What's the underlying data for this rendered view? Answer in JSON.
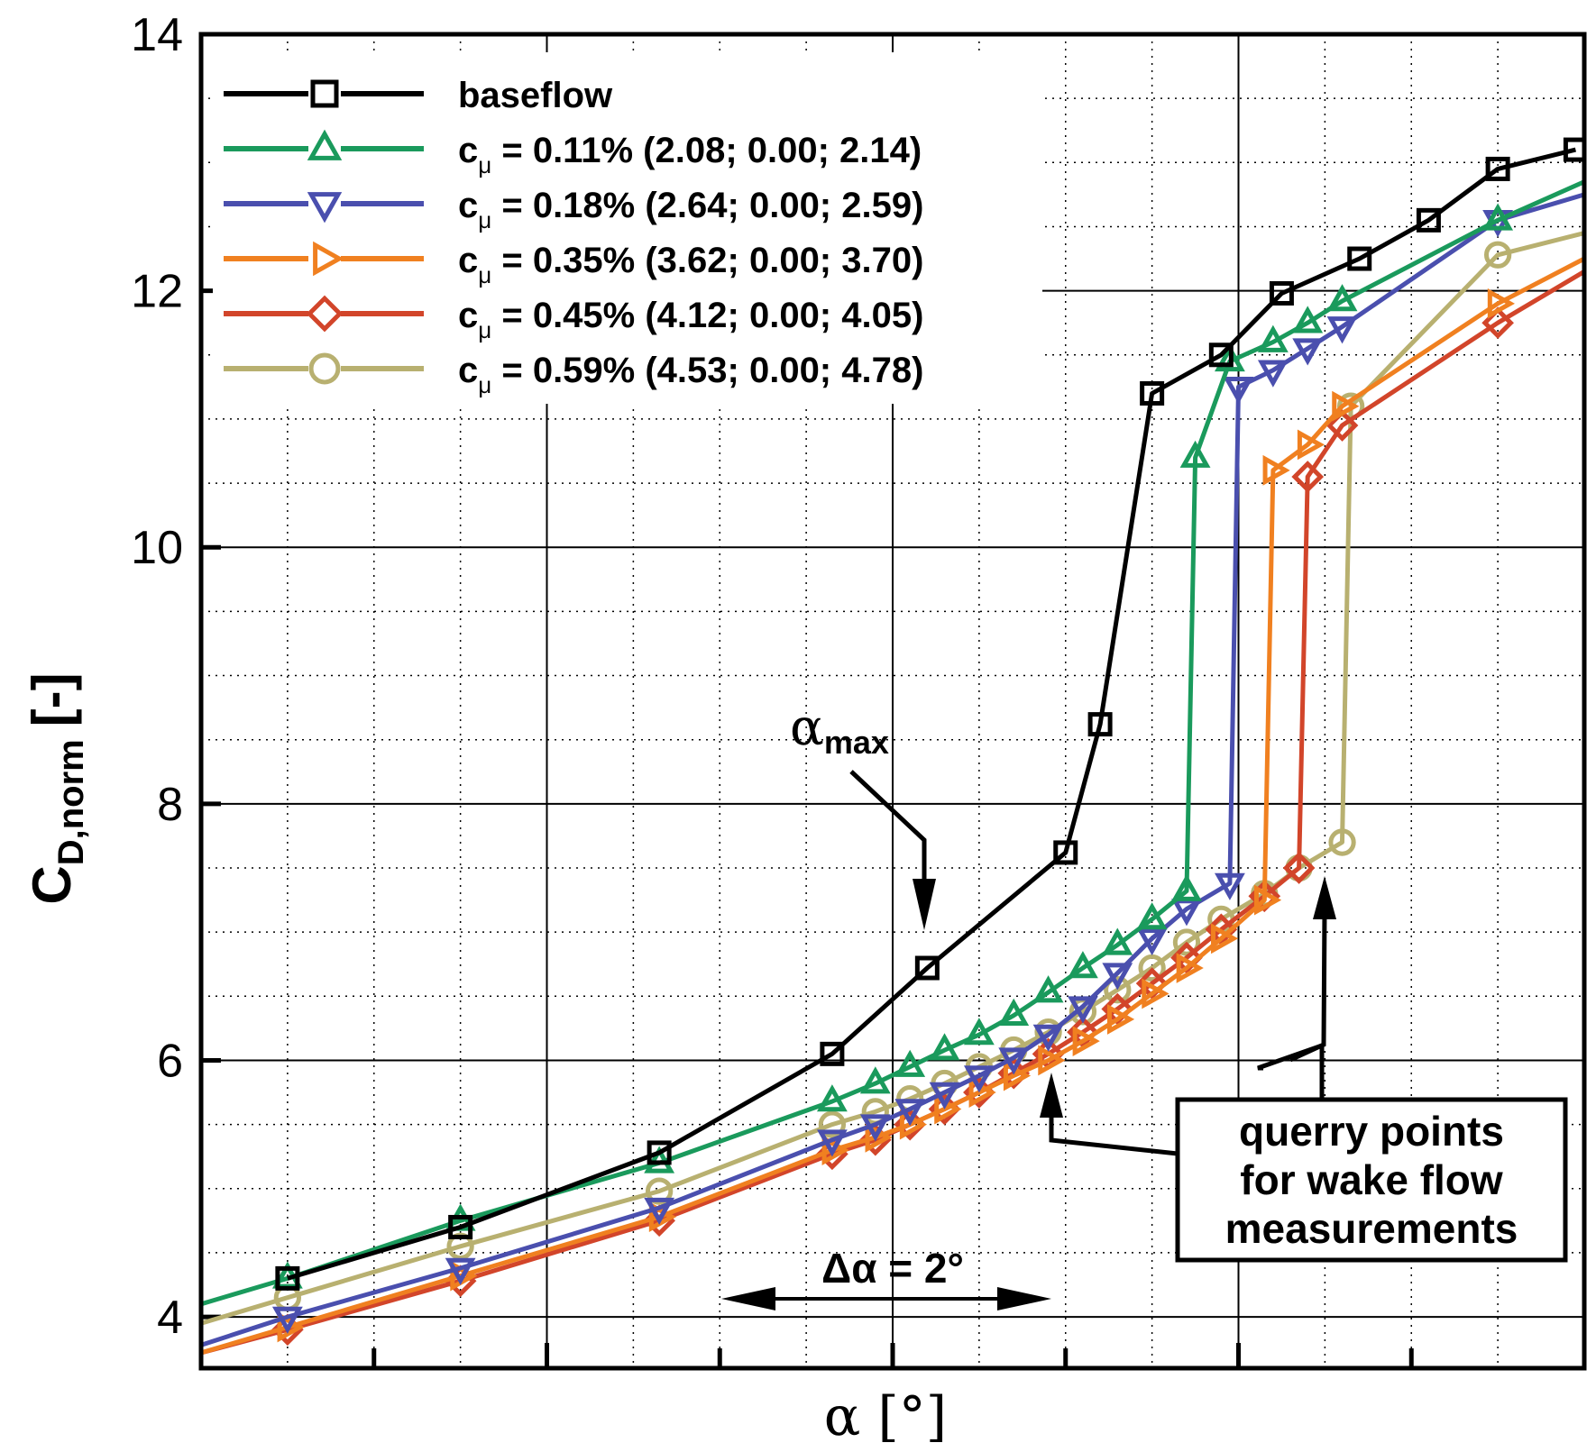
{
  "chart_data": {
    "type": "line",
    "title": "",
    "xlabel": "α [°]",
    "ylabel_main": "C",
    "ylabel_sub": "D,norm",
    "ylabel_unit": "[-]",
    "xlim": [
      -2,
      6
    ],
    "ylim": [
      3.6,
      14
    ],
    "yticks": [
      4,
      6,
      8,
      10,
      12,
      14
    ],
    "xmajor_ticks": [
      0,
      2,
      4
    ],
    "grid": true,
    "legend_position": "top-left",
    "series": [
      {
        "name": "baseflow",
        "label": "baseflow",
        "color": "#000000",
        "marker": "square",
        "x": [
          -1.5,
          -0.5,
          0.65,
          1.65,
          2.2,
          3.0,
          3.2,
          3.5,
          3.9,
          4.25,
          4.7,
          5.1,
          5.5,
          5.95
        ],
        "y": [
          4.3,
          4.7,
          5.28,
          6.05,
          6.72,
          7.62,
          8.62,
          11.2,
          11.5,
          11.98,
          12.25,
          12.55,
          12.95,
          13.1
        ]
      },
      {
        "name": "c_mu = 0.11%",
        "label_main": "c",
        "label_sub": "μ",
        "label_rest": " = 0.11% (2.08; 0.00; 2.14)",
        "color": "#1a9a5c",
        "marker": "triangle-up",
        "x": [
          -2,
          -1.5,
          -0.5,
          0.65,
          1.65,
          1.9,
          2.1,
          2.3,
          2.5,
          2.7,
          2.9,
          3.1,
          3.3,
          3.5,
          3.7,
          3.75,
          3.95,
          4.2,
          4.4,
          4.6,
          5.5,
          6.0
        ],
        "y": [
          4.1,
          4.3,
          4.75,
          5.2,
          5.68,
          5.82,
          5.95,
          6.08,
          6.2,
          6.35,
          6.53,
          6.72,
          6.9,
          7.1,
          7.32,
          10.7,
          11.45,
          11.6,
          11.75,
          11.92,
          12.55,
          12.85
        ]
      },
      {
        "name": "c_mu = 0.18%",
        "label_main": "c",
        "label_sub": "μ",
        "label_rest": " = 0.18% (2.64; 0.00; 2.59)",
        "color": "#4a4fae",
        "marker": "triangle-down",
        "x": [
          -2,
          -1.5,
          -0.5,
          0.65,
          1.65,
          1.9,
          2.1,
          2.3,
          2.5,
          2.7,
          2.9,
          3.1,
          3.3,
          3.5,
          3.7,
          3.95,
          4.0,
          4.2,
          4.4,
          4.6,
          5.5,
          6.0
        ],
        "y": [
          3.78,
          4.0,
          4.38,
          4.85,
          5.38,
          5.5,
          5.62,
          5.75,
          5.88,
          6.02,
          6.2,
          6.42,
          6.68,
          6.95,
          7.18,
          7.38,
          11.25,
          11.38,
          11.55,
          11.72,
          12.55,
          12.75
        ]
      },
      {
        "name": "c_mu = 0.35%",
        "label_main": "c",
        "label_sub": "μ",
        "label_rest": " = 0.35% (3.62; 0.00; 3.70)",
        "color": "#f08020",
        "marker": "triangle-right",
        "x": [
          -2,
          -1.5,
          -0.5,
          0.65,
          1.65,
          1.9,
          2.1,
          2.3,
          2.5,
          2.7,
          2.9,
          3.1,
          3.3,
          3.5,
          3.7,
          3.9,
          4.15,
          4.2,
          4.4,
          4.6,
          5.5,
          6.0
        ],
        "y": [
          3.72,
          3.92,
          4.32,
          4.78,
          5.3,
          5.4,
          5.5,
          5.62,
          5.75,
          5.88,
          6.0,
          6.15,
          6.32,
          6.52,
          6.72,
          6.95,
          7.25,
          10.6,
          10.8,
          11.1,
          11.9,
          12.25
        ]
      },
      {
        "name": "c_mu = 0.45%",
        "label_main": "c",
        "label_sub": "μ",
        "label_rest": " = 0.45% (4.12; 0.00; 4.05)",
        "color": "#d2452a",
        "marker": "diamond",
        "x": [
          -2,
          -1.5,
          -0.5,
          0.65,
          1.65,
          1.9,
          2.1,
          2.3,
          2.5,
          2.7,
          2.9,
          3.1,
          3.3,
          3.5,
          3.7,
          3.9,
          4.15,
          4.35,
          4.4,
          4.6,
          5.5,
          6.0
        ],
        "y": [
          3.72,
          3.9,
          4.28,
          4.75,
          5.27,
          5.38,
          5.5,
          5.62,
          5.75,
          5.9,
          6.05,
          6.22,
          6.4,
          6.6,
          6.8,
          7.02,
          7.28,
          7.5,
          10.55,
          10.95,
          11.75,
          12.15
        ]
      },
      {
        "name": "c_mu = 0.59%",
        "label_main": "c",
        "label_sub": "μ",
        "label_rest": " = 0.59% (4.53; 0.00; 4.78)",
        "color": "#b8b070",
        "marker": "circle",
        "x": [
          -2,
          -1.5,
          -0.5,
          0.65,
          1.65,
          1.9,
          2.1,
          2.3,
          2.5,
          2.7,
          2.9,
          3.1,
          3.3,
          3.5,
          3.7,
          3.9,
          4.15,
          4.35,
          4.6,
          4.65,
          5.5,
          6.0
        ],
        "y": [
          3.95,
          4.15,
          4.55,
          4.98,
          5.5,
          5.6,
          5.7,
          5.82,
          5.95,
          6.08,
          6.22,
          6.38,
          6.55,
          6.72,
          6.92,
          7.1,
          7.3,
          7.5,
          7.7,
          11.1,
          12.28,
          12.45
        ]
      }
    ],
    "annotations": {
      "alpha_max_greek": "α",
      "alpha_max_sub": "max",
      "delta_alpha": "Δα = 2°",
      "query_box_lines": [
        "querry points",
        "for wake flow",
        "measurements"
      ]
    }
  }
}
